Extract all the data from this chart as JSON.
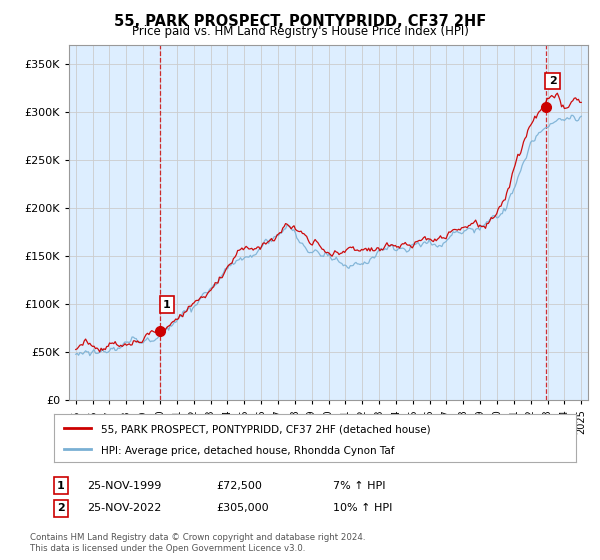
{
  "title": "55, PARK PROSPECT, PONTYPRIDD, CF37 2HF",
  "subtitle": "Price paid vs. HM Land Registry's House Price Index (HPI)",
  "legend_line1": "55, PARK PROSPECT, PONTYPRIDD, CF37 2HF (detached house)",
  "legend_line2": "HPI: Average price, detached house, Rhondda Cynon Taf",
  "annotation1_date": "25-NOV-1999",
  "annotation1_price": "£72,500",
  "annotation1_hpi": "7% ↑ HPI",
  "annotation2_date": "25-NOV-2022",
  "annotation2_price": "£305,000",
  "annotation2_hpi": "10% ↑ HPI",
  "footer": "Contains HM Land Registry data © Crown copyright and database right 2024.\nThis data is licensed under the Open Government Licence v3.0.",
  "red_color": "#cc0000",
  "blue_color": "#7ab0d4",
  "grid_color": "#cccccc",
  "plot_bg_color": "#ddeeff",
  "bg_color": "#ffffff",
  "sale1_year": 2000.0,
  "sale1_value": 72500,
  "sale2_year": 2022.9,
  "sale2_value": 305000,
  "ylim_max": 370000,
  "ylim_min": 0
}
